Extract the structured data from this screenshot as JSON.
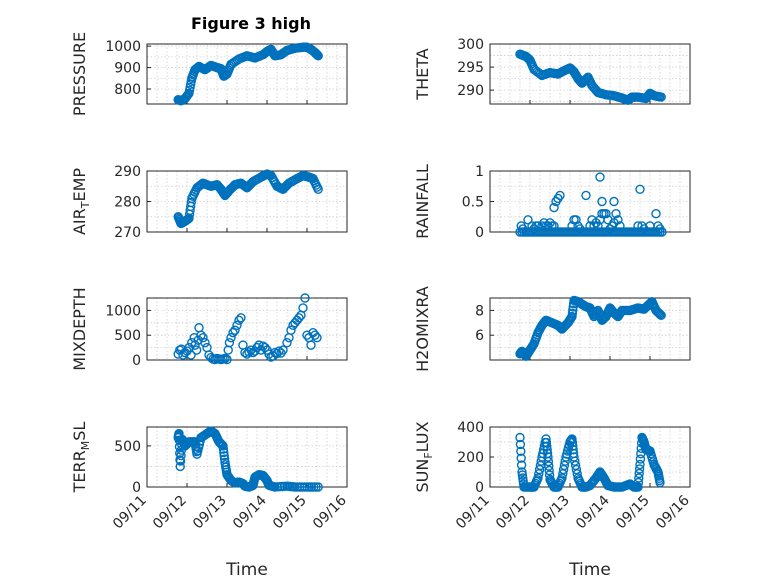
{
  "title": "Figure 3 high",
  "x_axis": {
    "label": "Time",
    "range": [
      0,
      5
    ],
    "ticks": [
      0,
      1,
      2,
      3,
      4,
      5
    ],
    "tick_labels": [
      "09/11",
      "09/12",
      "09/13",
      "09/14",
      "09/15",
      "09/16"
    ]
  },
  "colors": {
    "marker": "#0072BD",
    "axis": "#262626",
    "grid": "#cfcfcf"
  },
  "chart_data": [
    {
      "type": "scatter",
      "name": "pressure",
      "ylabel": "PRESSURE",
      "ylabel_sub": null,
      "ylim": [
        730,
        1010
      ],
      "yticks": [
        800,
        900,
        1000
      ],
      "ytick_labels": [
        "800",
        "900",
        "1000"
      ],
      "minor_yticks": [
        850,
        950
      ],
      "keys": [
        [
          0.78,
          750
        ],
        [
          0.85,
          745
        ],
        [
          0.95,
          755
        ],
        [
          1.05,
          780
        ],
        [
          1.12,
          850
        ],
        [
          1.2,
          890
        ],
        [
          1.3,
          905
        ],
        [
          1.45,
          890
        ],
        [
          1.6,
          910
        ],
        [
          1.75,
          900
        ],
        [
          1.85,
          895
        ],
        [
          1.92,
          860
        ],
        [
          2.0,
          870
        ],
        [
          2.1,
          915
        ],
        [
          2.3,
          940
        ],
        [
          2.5,
          955
        ],
        [
          2.7,
          945
        ],
        [
          2.9,
          960
        ],
        [
          3.0,
          975
        ],
        [
          3.1,
          985
        ],
        [
          3.2,
          955
        ],
        [
          3.35,
          960
        ],
        [
          3.5,
          980
        ],
        [
          3.7,
          990
        ],
        [
          3.9,
          995
        ],
        [
          4.0,
          995
        ],
        [
          4.1,
          985
        ],
        [
          4.2,
          970
        ],
        [
          4.28,
          955
        ]
      ]
    },
    {
      "type": "scatter",
      "name": "theta",
      "ylabel": "THETA",
      "ylabel_sub": null,
      "ylim": [
        287,
        300
      ],
      "yticks": [
        290,
        295,
        300
      ],
      "ytick_labels": [
        "290",
        "295",
        "300"
      ],
      "minor_yticks": [
        287.5,
        292.5,
        297.5
      ],
      "keys": [
        [
          0.75,
          297.8
        ],
        [
          0.9,
          297.3
        ],
        [
          1.0,
          296.5
        ],
        [
          1.1,
          294.5
        ],
        [
          1.3,
          293.2
        ],
        [
          1.5,
          293.8
        ],
        [
          1.7,
          293.5
        ],
        [
          1.85,
          294.2
        ],
        [
          2.0,
          294.8
        ],
        [
          2.1,
          294.0
        ],
        [
          2.2,
          292.5
        ],
        [
          2.3,
          291.5
        ],
        [
          2.45,
          292.8
        ],
        [
          2.55,
          291.0
        ],
        [
          2.7,
          289.5
        ],
        [
          2.9,
          289.0
        ],
        [
          3.1,
          288.8
        ],
        [
          3.3,
          288.3
        ],
        [
          3.45,
          287.8
        ],
        [
          3.55,
          288.5
        ],
        [
          3.7,
          288.5
        ],
        [
          3.9,
          288.2
        ],
        [
          4.0,
          289.3
        ],
        [
          4.1,
          288.8
        ],
        [
          4.28,
          288.5
        ]
      ]
    },
    {
      "type": "scatter",
      "name": "air_temp",
      "ylabel": "AIR",
      "ylabel_sub": "T",
      "ylabel_tail": "EMP",
      "ylim": [
        270,
        290
      ],
      "yticks": [
        270,
        280,
        290
      ],
      "ytick_labels": [
        "270",
        "280",
        "290"
      ],
      "minor_yticks": [
        275,
        285
      ],
      "keys": [
        [
          0.78,
          275
        ],
        [
          0.85,
          272.8
        ],
        [
          0.95,
          273.5
        ],
        [
          1.05,
          274.5
        ],
        [
          1.12,
          281
        ],
        [
          1.25,
          284.5
        ],
        [
          1.4,
          286
        ],
        [
          1.6,
          285
        ],
        [
          1.75,
          285.5
        ],
        [
          1.85,
          284
        ],
        [
          1.95,
          282
        ],
        [
          2.05,
          283.5
        ],
        [
          2.2,
          285.5
        ],
        [
          2.35,
          286
        ],
        [
          2.5,
          284.5
        ],
        [
          2.65,
          286.5
        ],
        [
          2.85,
          288
        ],
        [
          3.0,
          289
        ],
        [
          3.1,
          288.5
        ],
        [
          3.25,
          285
        ],
        [
          3.4,
          284
        ],
        [
          3.55,
          286
        ],
        [
          3.75,
          287.5
        ],
        [
          3.9,
          288.5
        ],
        [
          4.05,
          288
        ],
        [
          4.15,
          287.5
        ],
        [
          4.28,
          284
        ]
      ]
    },
    {
      "type": "scatter",
      "name": "rainfall",
      "ylabel": "RAINFALL",
      "ylabel_sub": null,
      "ylim": [
        0,
        1
      ],
      "yticks": [
        0,
        0.5,
        1
      ],
      "ytick_labels": [
        "0",
        "0.5",
        "1"
      ],
      "minor_yticks": [
        0.25,
        0.75
      ],
      "baseline": 0,
      "baseline_x": [
        0.75,
        4.3
      ],
      "x": [
        0.78,
        0.82,
        0.95,
        1.05,
        1.1,
        1.15,
        1.2,
        1.3,
        1.35,
        1.4,
        1.45,
        1.5,
        1.55,
        1.6,
        1.6,
        1.65,
        1.7,
        1.75,
        2.05,
        2.1,
        2.15,
        2.2,
        2.25,
        2.4,
        2.5,
        2.55,
        2.6,
        2.65,
        2.7,
        2.75,
        2.75,
        2.8,
        2.8,
        2.85,
        2.9,
        2.95,
        3.0,
        3.05,
        3.1,
        3.1,
        3.15,
        3.2,
        3.25,
        3.7,
        3.75,
        3.8,
        3.85,
        4.0,
        4.15,
        4.2,
        4.25
      ],
      "y": [
        0.1,
        0.05,
        0.2,
        0.1,
        0.05,
        0.1,
        0.1,
        0.1,
        0.15,
        0.1,
        0.1,
        0.15,
        0.1,
        0.4,
        0.1,
        0.5,
        0.55,
        0.6,
        0.1,
        0.2,
        0.2,
        0.1,
        0.05,
        0.6,
        0.1,
        0.2,
        0.1,
        0.15,
        0.1,
        0.9,
        0.2,
        0.3,
        0.5,
        0.3,
        0.3,
        0.2,
        0.05,
        0.1,
        0.15,
        0.5,
        0.3,
        0.2,
        0.1,
        0.1,
        0.7,
        0.1,
        0.05,
        0.1,
        0.3,
        0.1,
        0.05
      ]
    },
    {
      "type": "scatter",
      "name": "mixdepth",
      "ylabel": "MIXDEPTH",
      "ylabel_sub": null,
      "ylim": [
        0,
        1250
      ],
      "yticks": [
        0,
        500,
        1000
      ],
      "ytick_labels": [
        "0",
        "500",
        "1000"
      ],
      "minor_yticks": [
        250,
        750
      ],
      "x": [
        0.78,
        0.82,
        0.86,
        0.9,
        0.95,
        1.0,
        1.05,
        1.1,
        1.12,
        1.18,
        1.2,
        1.24,
        1.28,
        1.3,
        1.35,
        1.4,
        1.45,
        1.5,
        1.55,
        1.6,
        1.65,
        1.7,
        1.75,
        1.8,
        1.85,
        1.9,
        1.95,
        2.0,
        2.03,
        2.06,
        2.1,
        2.15,
        2.2,
        2.25,
        2.3,
        2.35,
        2.4,
        2.45,
        2.5,
        2.55,
        2.6,
        2.65,
        2.7,
        2.75,
        2.8,
        2.85,
        2.9,
        2.95,
        3.0,
        3.05,
        3.1,
        3.15,
        3.2,
        3.25,
        3.3,
        3.35,
        3.4,
        3.5,
        3.55,
        3.6,
        3.65,
        3.7,
        3.75,
        3.8,
        3.85,
        3.9,
        3.95,
        4.0,
        4.05,
        4.1,
        4.15,
        4.2,
        4.25
      ],
      "y": [
        120,
        200,
        220,
        100,
        150,
        180,
        250,
        100,
        350,
        450,
        300,
        200,
        400,
        650,
        500,
        450,
        350,
        250,
        100,
        50,
        20,
        10,
        30,
        20,
        10,
        20,
        30,
        10,
        200,
        350,
        450,
        550,
        600,
        700,
        800,
        850,
        300,
        150,
        120,
        160,
        200,
        150,
        180,
        250,
        300,
        200,
        280,
        250,
        200,
        120,
        60,
        80,
        150,
        130,
        180,
        140,
        200,
        350,
        450,
        600,
        700,
        750,
        800,
        850,
        900,
        1050,
        1250,
        500,
        450,
        300,
        550,
        500,
        450
      ]
    },
    {
      "type": "scatter",
      "name": "h2omixra",
      "ylabel": "H2OMIXRA",
      "ylabel_sub": null,
      "ylim": [
        4,
        9
      ],
      "yticks": [
        6,
        8
      ],
      "ytick_labels": [
        "6",
        "8"
      ],
      "minor_yticks": [
        5,
        7
      ],
      "keys": [
        [
          0.75,
          4.5
        ],
        [
          0.8,
          4.7
        ],
        [
          0.9,
          4.3
        ],
        [
          1.0,
          4.8
        ],
        [
          1.1,
          5.3
        ],
        [
          1.2,
          6.2
        ],
        [
          1.3,
          6.8
        ],
        [
          1.4,
          7.2
        ],
        [
          1.55,
          7.0
        ],
        [
          1.7,
          6.8
        ],
        [
          1.8,
          6.5
        ],
        [
          1.95,
          7.0
        ],
        [
          2.05,
          7.5
        ],
        [
          2.1,
          8.8
        ],
        [
          2.2,
          8.7
        ],
        [
          2.3,
          8.5
        ],
        [
          2.4,
          8.3
        ],
        [
          2.5,
          8.2
        ],
        [
          2.6,
          7.5
        ],
        [
          2.7,
          8.0
        ],
        [
          2.8,
          7.2
        ],
        [
          2.9,
          7.5
        ],
        [
          3.0,
          8.2
        ],
        [
          3.1,
          7.8
        ],
        [
          3.2,
          7.5
        ],
        [
          3.3,
          8.0
        ],
        [
          3.5,
          8.0
        ],
        [
          3.7,
          8.2
        ],
        [
          3.85,
          8.1
        ],
        [
          3.95,
          8.4
        ],
        [
          4.05,
          8.7
        ],
        [
          4.15,
          8.0
        ],
        [
          4.28,
          7.6
        ]
      ]
    },
    {
      "type": "scatter",
      "name": "terr_msl",
      "ylabel": "TERR",
      "ylabel_sub": "M",
      "ylabel_tail": "SL",
      "ylim": [
        0,
        730
      ],
      "yticks": [
        0,
        500
      ],
      "ytick_labels": [
        "0",
        "500"
      ],
      "minor_yticks": [
        250
      ],
      "keys": [
        [
          0.78,
          600
        ],
        [
          0.8,
          650
        ],
        [
          0.83,
          250
        ],
        [
          0.88,
          580
        ],
        [
          0.95,
          500
        ],
        [
          1.05,
          550
        ],
        [
          1.2,
          550
        ],
        [
          1.25,
          400
        ],
        [
          1.35,
          600
        ],
        [
          1.5,
          650
        ],
        [
          1.6,
          680
        ],
        [
          1.7,
          650
        ],
        [
          1.8,
          550
        ],
        [
          1.9,
          500
        ],
        [
          1.95,
          300
        ],
        [
          2.0,
          150
        ],
        [
          2.1,
          80
        ],
        [
          2.2,
          50
        ],
        [
          2.3,
          60
        ],
        [
          2.4,
          40
        ],
        [
          2.45,
          10
        ],
        [
          2.55,
          0
        ],
        [
          2.65,
          20
        ],
        [
          2.7,
          120
        ],
        [
          2.8,
          150
        ],
        [
          2.9,
          140
        ],
        [
          3.0,
          80
        ],
        [
          3.05,
          20
        ],
        [
          3.2,
          0
        ],
        [
          3.5,
          10
        ],
        [
          3.7,
          0
        ],
        [
          4.0,
          0
        ],
        [
          4.28,
          0
        ]
      ]
    },
    {
      "type": "scatter",
      "name": "sun_flux",
      "ylabel": "SUN",
      "ylabel_sub": "F",
      "ylabel_tail": "LUX",
      "ylim": [
        0,
        400
      ],
      "yticks": [
        0,
        200,
        400
      ],
      "ytick_labels": [
        "0",
        "200",
        "400"
      ],
      "minor_yticks": [
        100,
        300
      ],
      "keys": [
        [
          0.75,
          330
        ],
        [
          0.8,
          100
        ],
        [
          0.85,
          0
        ],
        [
          1.0,
          0
        ],
        [
          1.1,
          0
        ],
        [
          1.2,
          60
        ],
        [
          1.3,
          200
        ],
        [
          1.4,
          320
        ],
        [
          1.45,
          200
        ],
        [
          1.5,
          50
        ],
        [
          1.6,
          0
        ],
        [
          1.7,
          0
        ],
        [
          1.8,
          60
        ],
        [
          1.9,
          200
        ],
        [
          2.0,
          300
        ],
        [
          2.05,
          320
        ],
        [
          2.1,
          200
        ],
        [
          2.2,
          60
        ],
        [
          2.3,
          0
        ],
        [
          2.4,
          0
        ],
        [
          2.5,
          10
        ],
        [
          2.65,
          60
        ],
        [
          2.75,
          100
        ],
        [
          2.85,
          60
        ],
        [
          2.95,
          10
        ],
        [
          3.1,
          0
        ],
        [
          3.3,
          0
        ],
        [
          3.5,
          20
        ],
        [
          3.6,
          0
        ],
        [
          3.7,
          0
        ],
        [
          3.75,
          150
        ],
        [
          3.8,
          330
        ],
        [
          3.85,
          300
        ],
        [
          3.9,
          250
        ],
        [
          4.0,
          240
        ],
        [
          4.1,
          150
        ],
        [
          4.2,
          100
        ],
        [
          4.25,
          30
        ]
      ]
    }
  ]
}
